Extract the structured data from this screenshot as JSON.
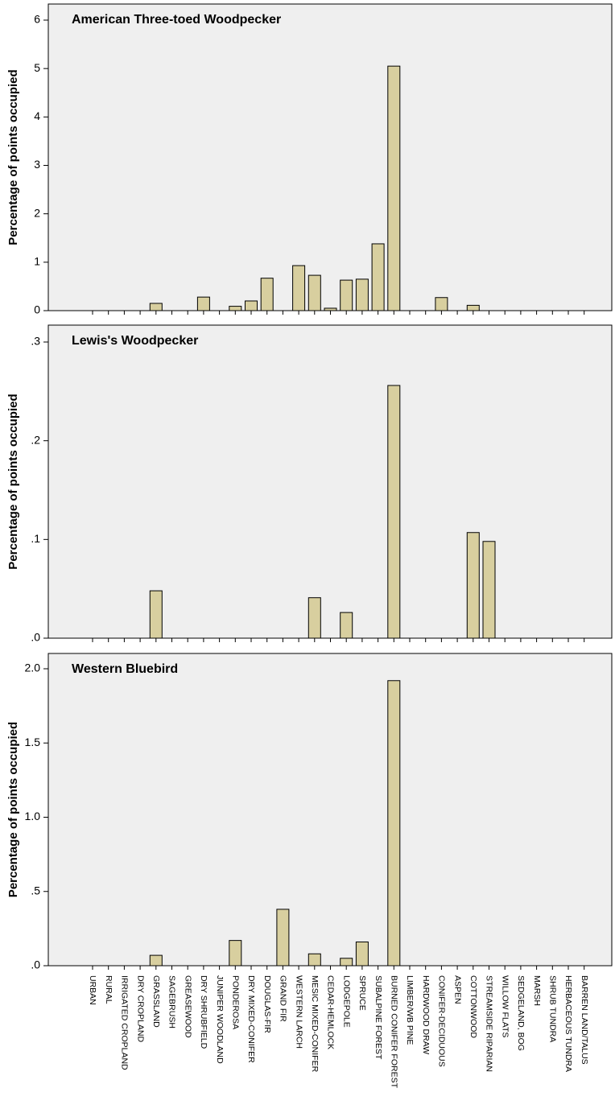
{
  "chart_data": [
    {
      "type": "bar",
      "title": "American Three-toed Woodpecker",
      "y_label": "Percentage of points occupied",
      "color": "#d8cf9f",
      "values": [
        0,
        0,
        0,
        0,
        0.15,
        0,
        0,
        0.28,
        0,
        0.09,
        0.2,
        0.67,
        0,
        0.93,
        0.73,
        0.05,
        0.63,
        0.65,
        1.38,
        5.05,
        0,
        0,
        0.27,
        0,
        0.11,
        0,
        0,
        0,
        0,
        0,
        0,
        0
      ],
      "ylim": [
        0,
        6
      ],
      "yticks": [
        0,
        1,
        2,
        3,
        4,
        5,
        6
      ]
    },
    {
      "type": "bar",
      "title": "Lewis's Woodpecker",
      "y_label": "Percentage of points occupied",
      "color": "#d8cf9f",
      "values": [
        0,
        0,
        0,
        0,
        0.048,
        0,
        0,
        0,
        0,
        0,
        0,
        0,
        0,
        0,
        0.041,
        0,
        0.026,
        0,
        0,
        0.256,
        0,
        0,
        0,
        0,
        0.107,
        0.098,
        0,
        0,
        0,
        0,
        0,
        0
      ],
      "ylim": [
        0,
        0.3
      ],
      "yticks": [
        {
          "value": 0,
          "label": ".0"
        },
        {
          "value": 0.1,
          "label": ".1"
        },
        {
          "value": 0.2,
          "label": ".2"
        },
        {
          "value": 0.3,
          "label": ".3"
        }
      ]
    },
    {
      "type": "bar",
      "title": "Western Bluebird",
      "y_label": "Percentage of points occupied",
      "color": "#d8cf9f",
      "categories": [
        "URBAN",
        "RURAL",
        "IRRIGATED CROPLAND",
        "DRY CROPLAND",
        "GRASSLAND",
        "SAGEBRUSH",
        "GREASEWOOD",
        "DRY SHRUBFIELD",
        "JUNIPER WOODLAND",
        "PONDEROSA",
        "DRY MIXED-CONIFER",
        "DOUGLAS-FIR",
        "GRAND FIR",
        "WESTERN LARCH",
        "MESIC MIXED-CONIFER",
        "CEDAR-HEMLOCK",
        "LODGEPOLE",
        "SPRUCE",
        "SUBALPINE FOREST",
        "BURNED CONIFER FOREST",
        "LIMBER/WB PINE",
        "HARDWOOD DRAW",
        "CONIFER-DECIDUOUS",
        "ASPEN",
        "COTTONWOOD",
        "STREAMSIDE RIPARIAN",
        "WILLOW FLATS",
        "SEDGELAND, BOG",
        "MARSH",
        "SHRUB TUNDRA",
        "HERBACEOUS TUNDRA",
        "BARREN LAND/TALUS"
      ],
      "values": [
        0,
        0,
        0,
        0,
        0.07,
        0,
        0,
        0,
        0,
        0.17,
        0,
        0,
        0.38,
        0,
        0.08,
        0,
        0.05,
        0.16,
        0,
        1.92,
        0,
        0,
        0,
        0,
        0,
        0,
        0,
        0,
        0,
        0,
        0,
        0
      ],
      "ylim": [
        0,
        2
      ],
      "yticks": [
        {
          "value": 0,
          "label": ".0"
        },
        {
          "value": 0.5,
          "label": ".5"
        },
        {
          "value": 1,
          "label": "1.0"
        },
        {
          "value": 1.5,
          "label": "1.5"
        },
        {
          "value": 2,
          "label": "2.0"
        }
      ]
    }
  ]
}
